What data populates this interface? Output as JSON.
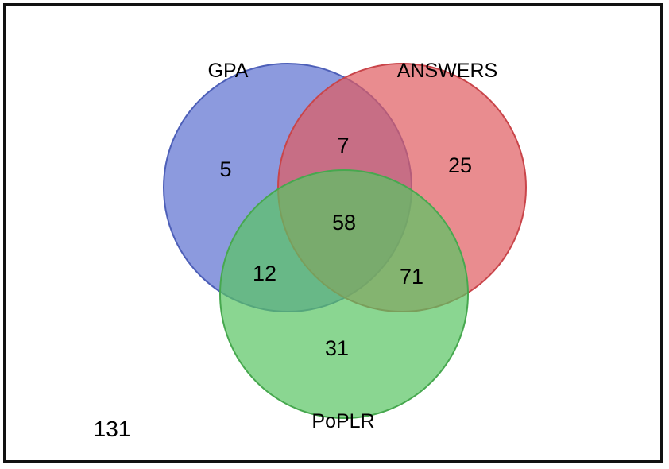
{
  "venn": {
    "sets": [
      {
        "label": "GPA",
        "fill": "#5b6fd0",
        "stroke": "#4d5fb8"
      },
      {
        "label": "ANSWERS",
        "fill": "#e05b5f",
        "stroke": "#c9454a"
      },
      {
        "label": "PoPLR",
        "fill": "#58c563",
        "stroke": "#47a84f"
      }
    ],
    "regions": {
      "gpa_only": "5",
      "gpa_answers": "7",
      "answers_only": "25",
      "all_three": "58",
      "gpa_poplr": "12",
      "answers_poplr": "71",
      "poplr_only": "31"
    },
    "outside": "131",
    "fill_opacity": 0.7
  }
}
